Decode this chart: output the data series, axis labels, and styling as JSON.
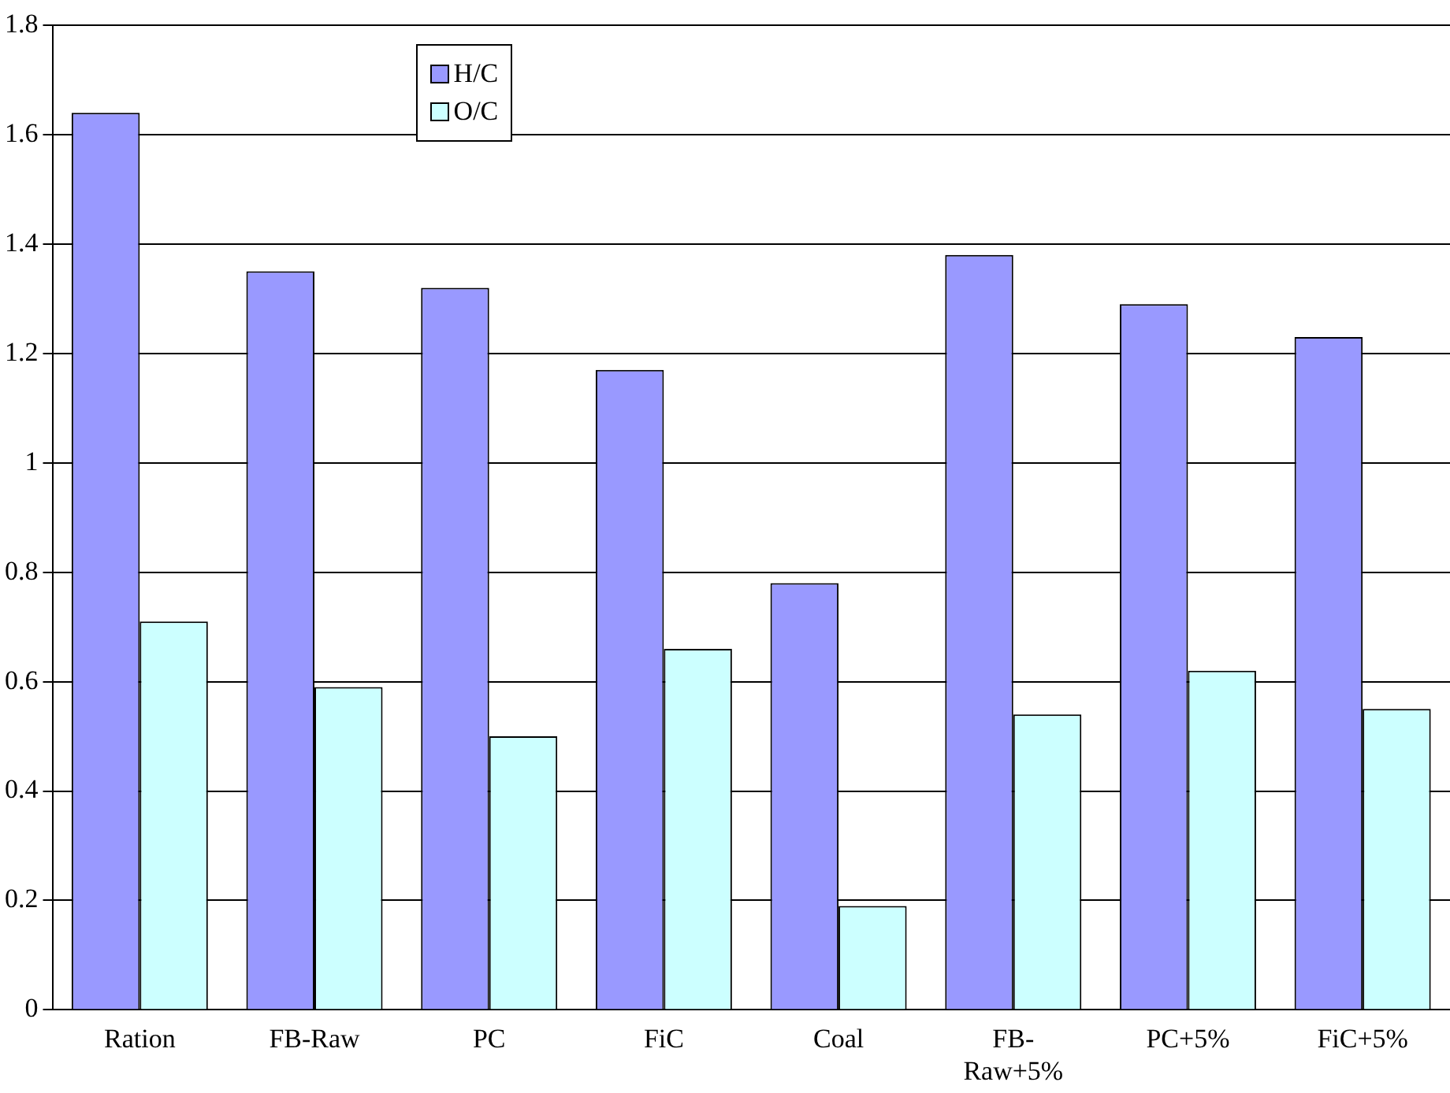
{
  "chart_data": {
    "type": "bar",
    "categories": [
      "Ration",
      "FB-Raw",
      "PC",
      "FiC",
      "Coal",
      "FB-Raw+5%",
      "PC+5%",
      "FiC+5%"
    ],
    "series": [
      {
        "name": "H/C",
        "color": "#9999ff",
        "values": [
          1.64,
          1.35,
          1.32,
          1.17,
          0.78,
          1.38,
          1.29,
          1.23
        ]
      },
      {
        "name": "O/C",
        "color": "#ccffff",
        "values": [
          0.71,
          0.59,
          0.5,
          0.66,
          0.19,
          0.54,
          0.62,
          0.55
        ]
      }
    ],
    "ylim": [
      0,
      1.8
    ],
    "yticks": [
      0,
      0.2,
      0.4,
      0.6,
      0.8,
      1,
      1.2,
      1.4,
      1.6,
      1.8
    ],
    "grid": "y",
    "legend": "top left"
  }
}
